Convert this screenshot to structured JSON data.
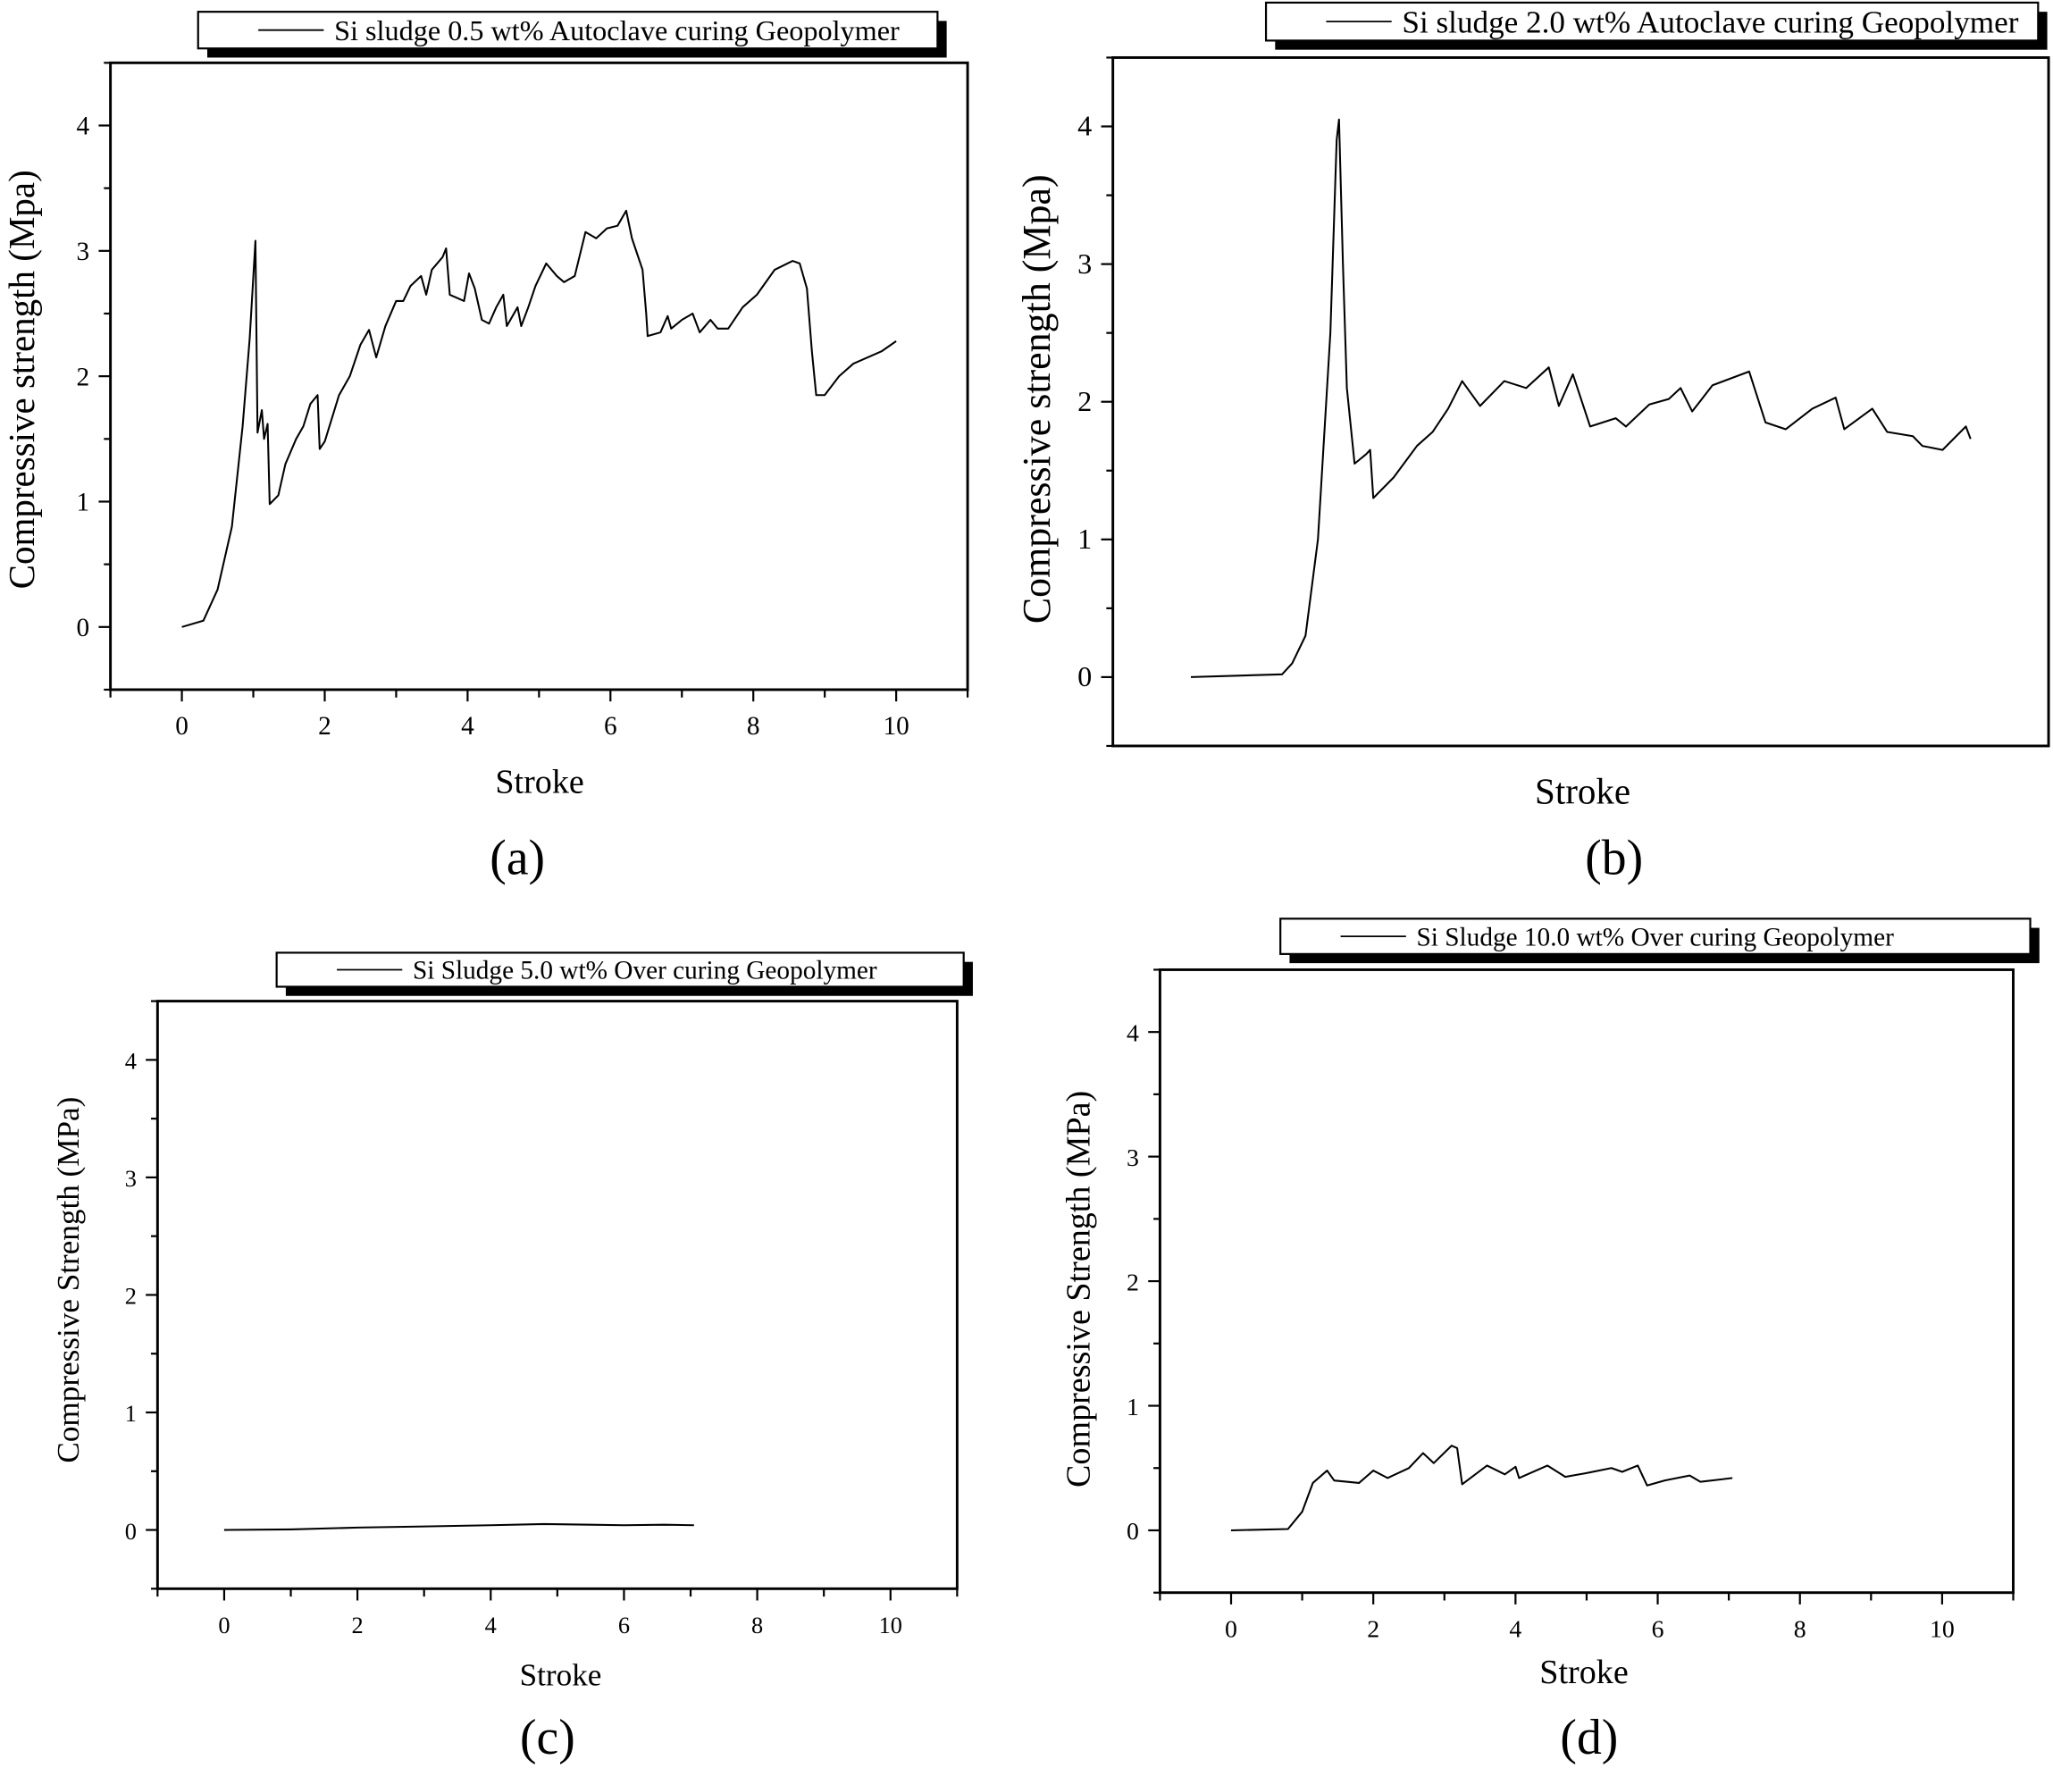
{
  "chart_data": [
    {
      "type": "line",
      "panel_label": "(a)",
      "legend": "Si sludge 0.5 wt% Autoclave curing Geopolymer",
      "xlabel": "Stroke",
      "ylabel": "Compressive strength (Mpa)",
      "xlim": [
        -1,
        11
      ],
      "ylim": [
        -0.5,
        4.5
      ],
      "xticks": [
        "0",
        "2",
        "4",
        "6",
        "8",
        "10"
      ],
      "yticks": [
        "0",
        "1",
        "2",
        "3",
        "4"
      ],
      "x": [
        0,
        0.3,
        0.5,
        0.7,
        0.85,
        0.95,
        1.03,
        1.06,
        1.12,
        1.15,
        1.2,
        1.23,
        1.35,
        1.45,
        1.6,
        1.7,
        1.8,
        1.9,
        1.93,
        2.0,
        2.2,
        2.35,
        2.5,
        2.62,
        2.72,
        2.85,
        3.0,
        3.1,
        3.2,
        3.35,
        3.42,
        3.5,
        3.65,
        3.7,
        3.75,
        3.95,
        4.02,
        4.1,
        4.2,
        4.3,
        4.4,
        4.5,
        4.55,
        4.7,
        4.75,
        4.85,
        4.95,
        5.1,
        5.25,
        5.35,
        5.5,
        5.65,
        5.8,
        5.95,
        6.1,
        6.22,
        6.3,
        6.45,
        6.5,
        6.52,
        6.7,
        6.8,
        6.85,
        7.0,
        7.15,
        7.25,
        7.4,
        7.5,
        7.65,
        7.85,
        8.05,
        8.3,
        8.55,
        8.65,
        8.75,
        8.82,
        8.88,
        9.0,
        9.2,
        9.4,
        9.6,
        9.8,
        10.0
      ],
      "y": [
        0,
        0.05,
        0.3,
        0.8,
        1.6,
        2.3,
        3.08,
        1.55,
        1.73,
        1.5,
        1.62,
        0.98,
        1.05,
        1.3,
        1.5,
        1.6,
        1.78,
        1.85,
        1.42,
        1.48,
        1.85,
        2.0,
        2.25,
        2.37,
        2.15,
        2.4,
        2.6,
        2.6,
        2.72,
        2.8,
        2.65,
        2.85,
        2.95,
        3.02,
        2.65,
        2.6,
        2.82,
        2.7,
        2.45,
        2.42,
        2.55,
        2.65,
        2.4,
        2.55,
        2.4,
        2.55,
        2.72,
        2.9,
        2.8,
        2.75,
        2.8,
        3.15,
        3.1,
        3.18,
        3.2,
        3.32,
        3.1,
        2.85,
        2.5,
        2.32,
        2.35,
        2.48,
        2.38,
        2.45,
        2.5,
        2.35,
        2.45,
        2.38,
        2.38,
        2.55,
        2.65,
        2.85,
        2.92,
        2.9,
        2.7,
        2.2,
        1.85,
        1.85,
        2.0,
        2.1,
        2.15,
        2.2,
        2.28
      ]
    },
    {
      "type": "line",
      "panel_label": "(b)",
      "legend": "Si sludge 2.0 wt% Autoclave curing Geopolymer",
      "xlabel": "Stroke",
      "ylabel": "Compressive strength (Mpa)",
      "xlim": [
        -1,
        11
      ],
      "ylim": [
        -0.5,
        4.5
      ],
      "xticks": [],
      "yticks": [
        "0",
        "1",
        "2",
        "3",
        "4"
      ],
      "x": [
        0,
        0.6,
        1.17,
        1.3,
        1.47,
        1.63,
        1.79,
        1.87,
        1.9,
        1.95,
        2.0,
        2.1,
        2.25,
        2.3,
        2.34,
        2.6,
        2.9,
        3.1,
        3.3,
        3.48,
        3.71,
        4.02,
        4.3,
        4.59,
        4.72,
        4.9,
        5.12,
        5.45,
        5.58,
        5.88,
        6.13,
        6.28,
        6.43,
        6.69,
        7.16,
        7.37,
        7.63,
        7.97,
        8.27,
        8.38,
        8.74,
        8.93,
        9.26,
        9.38,
        9.64,
        9.94,
        10.0
      ],
      "y": [
        0,
        0.01,
        0.02,
        0.1,
        0.3,
        1.0,
        2.5,
        3.9,
        4.05,
        3.0,
        2.1,
        1.55,
        1.62,
        1.65,
        1.3,
        1.45,
        1.68,
        1.78,
        1.95,
        2.15,
        1.97,
        2.15,
        2.1,
        2.25,
        1.97,
        2.2,
        1.82,
        1.88,
        1.82,
        1.98,
        2.02,
        2.1,
        1.93,
        2.12,
        2.22,
        1.85,
        1.8,
        1.95,
        2.03,
        1.8,
        1.95,
        1.78,
        1.75,
        1.68,
        1.65,
        1.82,
        1.73
      ]
    },
    {
      "type": "line",
      "panel_label": "(c)",
      "legend": "Si Sludge 5.0 wt% Over curing Geopolymer",
      "xlabel": "Stroke",
      "ylabel": "Compressive Strength (MPa)",
      "xlim": [
        -1,
        11
      ],
      "ylim": [
        -0.5,
        4.5
      ],
      "xticks": [
        "0",
        "2",
        "4",
        "6",
        "8",
        "10"
      ],
      "yticks": [
        "0",
        "1",
        "2",
        "3",
        "4"
      ],
      "x": [
        0,
        1,
        2,
        3,
        4,
        4.8,
        5.5,
        6,
        6.6,
        7.05
      ],
      "y": [
        0,
        0.005,
        0.02,
        0.03,
        0.04,
        0.05,
        0.045,
        0.04,
        0.045,
        0.04
      ]
    },
    {
      "type": "line",
      "panel_label": "(d)",
      "legend": "Si Sludge 10.0 wt% Over curing Geopolymer",
      "xlabel": "Stroke",
      "ylabel": "Compressive Strength (MPa)",
      "xlim": [
        -1,
        11
      ],
      "ylim": [
        -0.5,
        4.5
      ],
      "xticks": [
        "0",
        "2",
        "4",
        "6",
        "8",
        "10"
      ],
      "yticks": [
        "0",
        "1",
        "2",
        "3",
        "4"
      ],
      "x": [
        0,
        0.8,
        1.0,
        1.15,
        1.35,
        1.45,
        1.8,
        2.0,
        2.2,
        2.5,
        2.7,
        2.85,
        3.1,
        3.18,
        3.25,
        3.6,
        3.85,
        4.0,
        4.05,
        4.45,
        4.7,
        5.0,
        5.35,
        5.5,
        5.72,
        5.85,
        6.1,
        6.45,
        6.6,
        6.9,
        7.05
      ],
      "y": [
        0,
        0.01,
        0.15,
        0.38,
        0.48,
        0.4,
        0.38,
        0.48,
        0.42,
        0.5,
        0.62,
        0.54,
        0.68,
        0.66,
        0.37,
        0.52,
        0.45,
        0.51,
        0.42,
        0.52,
        0.43,
        0.46,
        0.5,
        0.47,
        0.52,
        0.36,
        0.4,
        0.44,
        0.39,
        0.41,
        0.42
      ]
    }
  ]
}
